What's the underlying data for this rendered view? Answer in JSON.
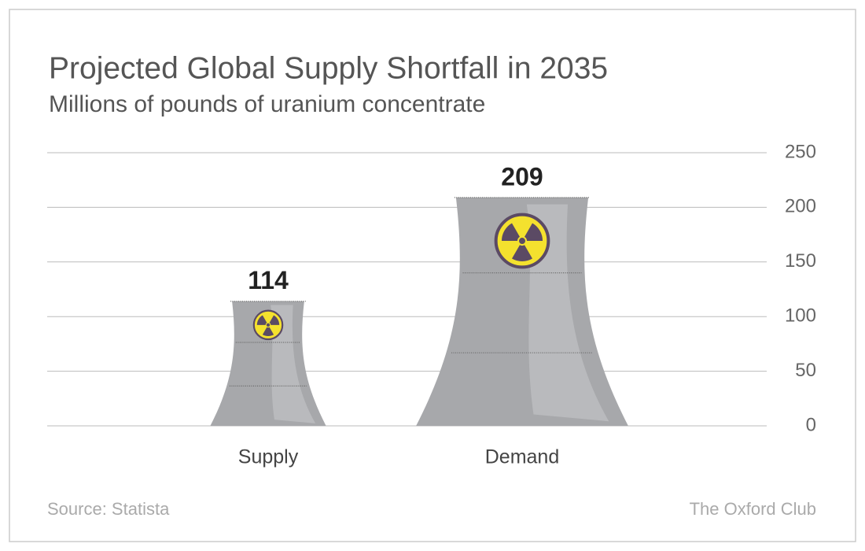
{
  "chart_data": {
    "type": "bar",
    "title": "Projected Global Supply Shortfall in 2035",
    "subtitle": "Millions of pounds of uranium concentrate",
    "categories": [
      "Supply",
      "Demand"
    ],
    "values": [
      114,
      209
    ],
    "color": "#a7a8ab",
    "ylim": [
      0,
      250
    ],
    "yticks": [
      0,
      50,
      100,
      150,
      200,
      250
    ],
    "grid": true,
    "source": "Source: Statista",
    "credit": "The Oxford Club"
  }
}
